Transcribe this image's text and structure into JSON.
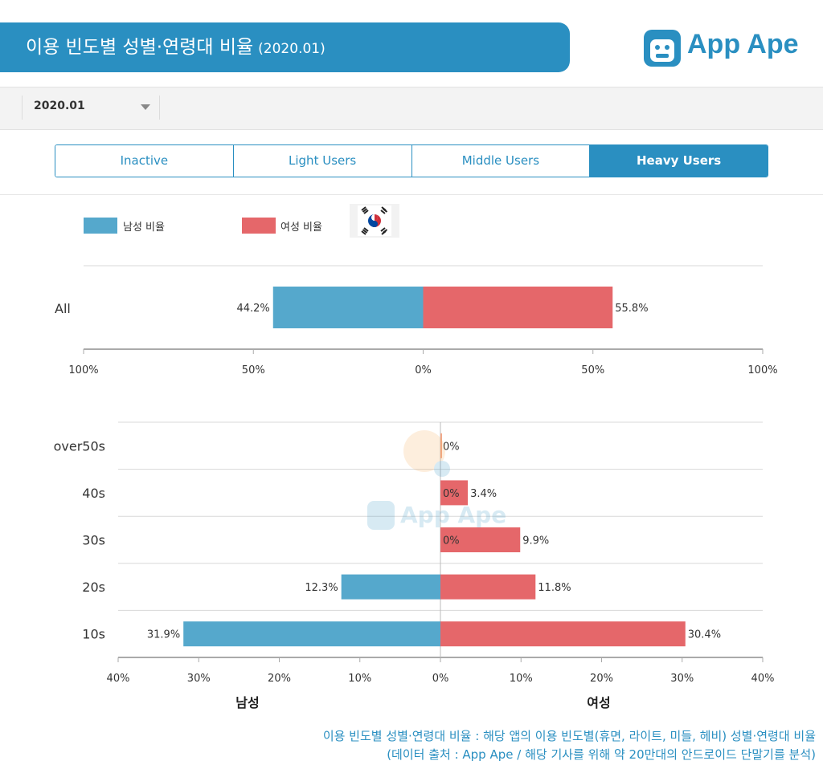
{
  "header": {
    "title": "이용 빈도별 성별·연령대 비율",
    "date": "(2020.01)"
  },
  "logo": {
    "text": "App Ape"
  },
  "filter": {
    "date_value": "2020.01"
  },
  "tabs": [
    {
      "label": "Inactive",
      "active": false
    },
    {
      "label": "Light Users",
      "active": false
    },
    {
      "label": "Middle Users",
      "active": false
    },
    {
      "label": "Heavy Users",
      "active": true
    }
  ],
  "legend": {
    "male_label": "남성 비율",
    "female_label": "여성 비율",
    "male_color": "#55a8cc",
    "female_color": "#e5676a",
    "flag": "south-korea-flag-icon"
  },
  "watermark": "App Ape",
  "chart_data": [
    {
      "type": "bar",
      "orientation": "horizontal-diverging",
      "categories": [
        "All"
      ],
      "series": [
        {
          "name": "남성 비율",
          "values": [
            44.2
          ],
          "labels": [
            "44.2%"
          ]
        },
        {
          "name": "여성 비율",
          "values": [
            55.8
          ],
          "labels": [
            "55.8%"
          ]
        }
      ],
      "xlim": [
        -100,
        100
      ],
      "ticks": [
        -100,
        -50,
        0,
        50,
        100
      ],
      "tick_labels": [
        "100%",
        "50%",
        "0%",
        "50%",
        "100%"
      ]
    },
    {
      "type": "bar",
      "orientation": "horizontal-diverging",
      "categories": [
        "over50s",
        "40s",
        "30s",
        "20s",
        "10s"
      ],
      "series": [
        {
          "name": "남성",
          "values": [
            0,
            0,
            0,
            12.3,
            31.9
          ],
          "labels": [
            "",
            "0%",
            "0%",
            "12.3%",
            "31.9%"
          ]
        },
        {
          "name": "여성",
          "values": [
            0,
            3.4,
            9.9,
            11.8,
            30.4
          ],
          "labels": [
            "0%",
            "3.4%",
            "9.9%",
            "11.8%",
            "30.4%"
          ]
        }
      ],
      "xlim": [
        -40,
        40
      ],
      "ticks": [
        -40,
        -30,
        -20,
        -10,
        0,
        10,
        20,
        30,
        40
      ],
      "tick_labels": [
        "40%",
        "30%",
        "20%",
        "10%",
        "0%",
        "10%",
        "20%",
        "30%",
        "40%"
      ],
      "xlabel_left": "남성",
      "xlabel_right": "여성"
    }
  ],
  "footnote": {
    "line1": "이용 빈도별 성별·연령대 비율 : 해당 앱의 이용 빈도별(휴면, 라이트, 미들, 헤비) 성별·연령대 비율",
    "line2": "(데이터 출처 : App Ape / 해당 기사를 위해 약 20만대의 안드로이드 단말기를 분석)"
  }
}
